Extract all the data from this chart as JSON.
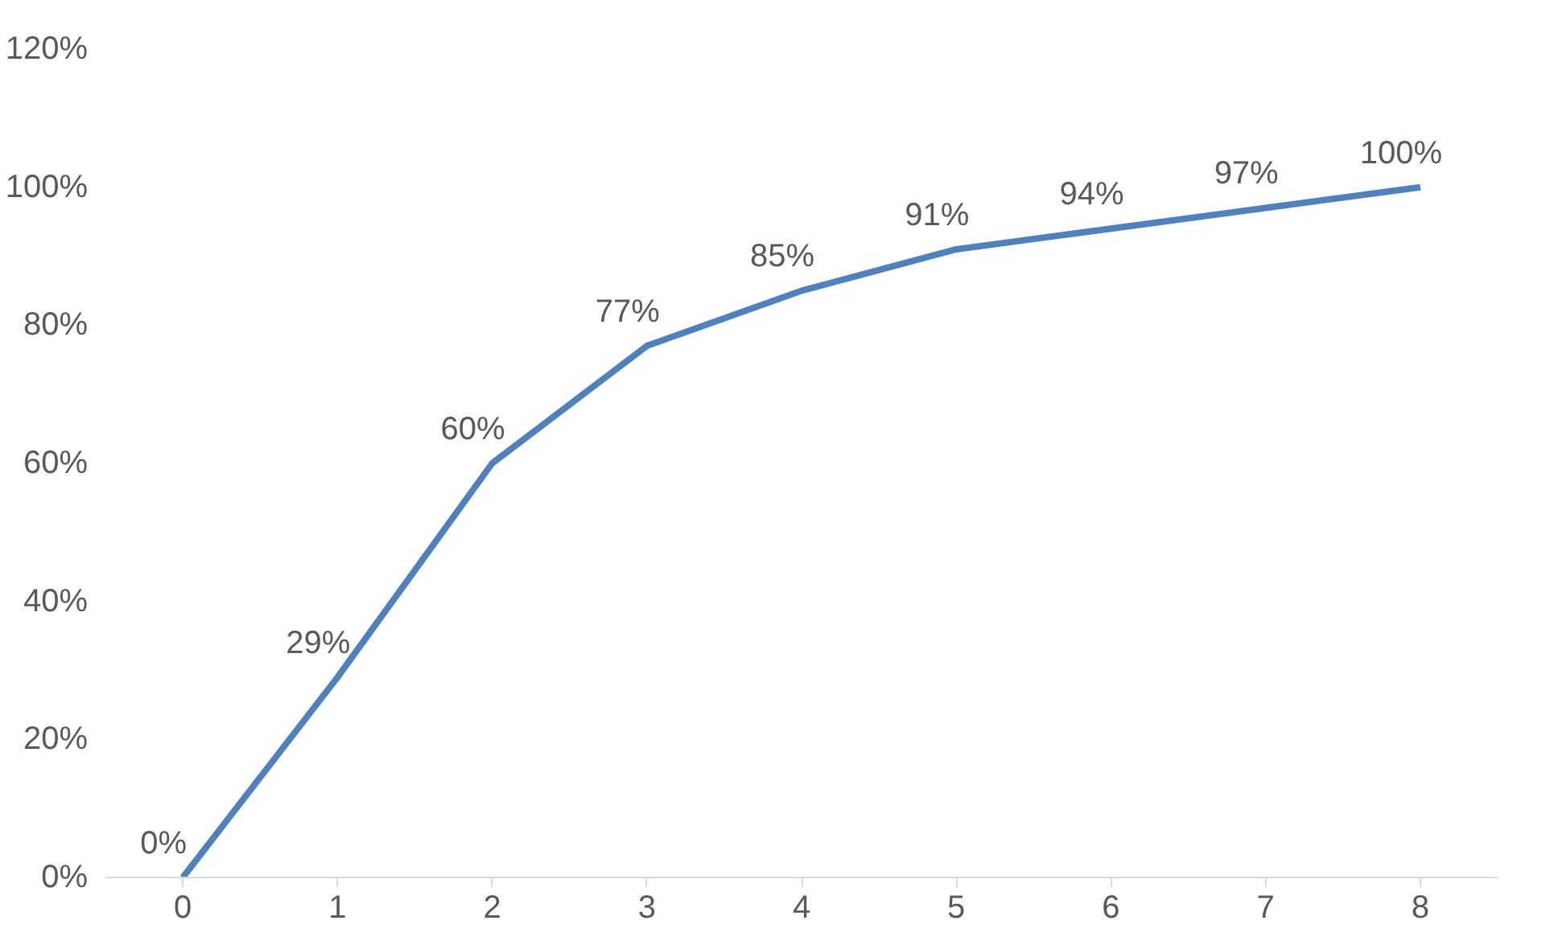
{
  "chart_data": {
    "type": "line",
    "categories": [
      "0",
      "1",
      "2",
      "3",
      "4",
      "5",
      "6",
      "7",
      "8"
    ],
    "series": [
      {
        "color": "#4f81bd",
        "values": [
          0,
          29,
          60,
          77,
          85,
          91,
          94,
          97,
          100
        ],
        "value_labels": [
          "0%",
          "29%",
          "60%",
          "77%",
          "85%",
          "91%",
          "94%",
          "97%",
          "100%"
        ]
      }
    ],
    "ylim": [
      0,
      120
    ],
    "yticks": [
      {
        "value": 0,
        "label": "0%"
      },
      {
        "value": 20,
        "label": "20%"
      },
      {
        "value": 40,
        "label": "40%"
      },
      {
        "value": 60,
        "label": "60%"
      },
      {
        "value": 80,
        "label": "80%"
      },
      {
        "value": 100,
        "label": "100%"
      },
      {
        "value": 120,
        "label": "120%"
      }
    ],
    "grid": false,
    "marker": "none",
    "line_style": "solid"
  }
}
